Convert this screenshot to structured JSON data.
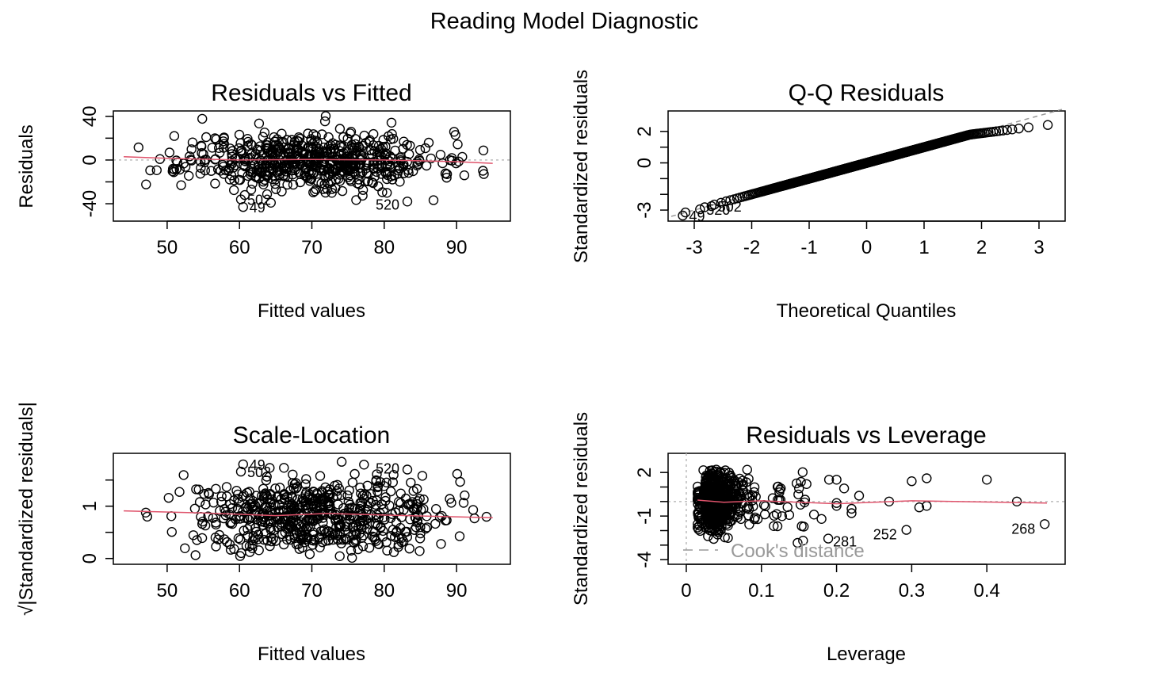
{
  "figure": {
    "title": "Reading Model Diagnostic"
  },
  "chart_data": [
    {
      "type": "scatter",
      "title": "Residuals vs Fitted",
      "xlabel": "Fitted values",
      "ylabel": "Residuals",
      "xlim": [
        43,
        97
      ],
      "ylim": [
        -53,
        42
      ],
      "xticks": [
        50,
        60,
        70,
        80,
        90
      ],
      "yticks": [
        -40,
        0,
        40
      ],
      "yticks_minor": [
        -20,
        20
      ],
      "reference_line": {
        "y": 0,
        "style": "dotted",
        "color": "#bbbbbb"
      },
      "smoother": [
        [
          44,
          3
        ],
        [
          50,
          1.5
        ],
        [
          60,
          0
        ],
        [
          70,
          0.5
        ],
        [
          80,
          0
        ],
        [
          90,
          -1.5
        ],
        [
          95,
          -3
        ]
      ],
      "labeled_points": [
        {
          "x": 60.5,
          "y": -43,
          "label": "49"
        },
        {
          "x": 60.2,
          "y": -36,
          "label": "502"
        },
        {
          "x": 83.2,
          "y": -38,
          "label": "520"
        }
      ],
      "cloud": {
        "n": 620,
        "x_range": [
          44,
          95
        ],
        "y_sd": 13,
        "seed": 11
      }
    },
    {
      "type": "scatter",
      "title": "Q-Q Residuals",
      "xlabel": "Theoretical Quantiles",
      "ylabel": "Standardized residuals",
      "xlim": [
        -3.4,
        3.4
      ],
      "ylim": [
        -3.5,
        3.1
      ],
      "xticks": [
        -3,
        -2,
        -1,
        0,
        1,
        2,
        3
      ],
      "yticks": [
        -3,
        0,
        2
      ],
      "yticks_minor": [
        -2,
        -1,
        1
      ],
      "reference_line": {
        "slope": 1,
        "intercept": 0,
        "style": "dashed",
        "color": "#999999"
      },
      "labeled_points": [
        {
          "x": -3.2,
          "y": -3.35,
          "label": "49"
        },
        {
          "x": -2.9,
          "y": -2.95,
          "label": "520"
        },
        {
          "x": -2.7,
          "y": -2.75,
          "label": "502"
        }
      ],
      "cloud": {
        "n": 620,
        "upper_tail_flatten": true
      }
    },
    {
      "type": "scatter",
      "title": "Scale-Location",
      "xlabel": "Fitted values",
      "ylabel": "√|Standardized residuals|",
      "xlim": [
        43,
        97
      ],
      "ylim": [
        -0.05,
        1.95
      ],
      "xticks": [
        50,
        60,
        70,
        80,
        90
      ],
      "yticks": [
        0.0,
        1.0
      ],
      "yticks_minor": [
        0.5,
        1.5
      ],
      "smoother": [
        [
          44,
          0.91
        ],
        [
          55,
          0.87
        ],
        [
          65,
          0.82
        ],
        [
          72,
          0.86
        ],
        [
          80,
          0.83
        ],
        [
          95,
          0.78
        ]
      ],
      "labeled_points": [
        {
          "x": 60.5,
          "y": 1.8,
          "label": "49"
        },
        {
          "x": 60.2,
          "y": 1.66,
          "label": "502"
        },
        {
          "x": 83.2,
          "y": 1.7,
          "label": "520"
        }
      ],
      "cloud": {
        "n": 620,
        "x_range": [
          44,
          95
        ],
        "seed": 29
      }
    },
    {
      "type": "scatter",
      "title": "Residuals vs Leverage",
      "xlabel": "Leverage",
      "ylabel": "Standardized residuals",
      "xlim": [
        -0.02,
        0.5
      ],
      "ylim": [
        -4.1,
        3.1
      ],
      "xticks": [
        0.0,
        0.1,
        0.2,
        0.3,
        0.4
      ],
      "yticks": [
        -4,
        -1,
        2
      ],
      "yticks_minor": [
        -3,
        -2,
        0,
        1
      ],
      "legend": {
        "label": "Cook's distance",
        "position": "bottom-left",
        "color": "#999999"
      },
      "reference_lines": [
        {
          "y": 0,
          "style": "dotted",
          "color": "#bbbbbb"
        },
        {
          "x": 0,
          "style": "dotted",
          "color": "#bbbbbb"
        }
      ],
      "smoother": [
        [
          0.015,
          0.1
        ],
        [
          0.05,
          -0.05
        ],
        [
          0.1,
          0.05
        ],
        [
          0.2,
          -0.15
        ],
        [
          0.3,
          0.05
        ],
        [
          0.48,
          -0.1
        ]
      ],
      "labeled_points": [
        {
          "x": 0.189,
          "y": -2.55,
          "label": "281"
        },
        {
          "x": 0.293,
          "y": -1.95,
          "label": "252"
        },
        {
          "x": 0.477,
          "y": -1.55,
          "label": "268"
        }
      ],
      "extra_points": [
        [
          0.15,
          0.9
        ],
        [
          0.16,
          1.2
        ],
        [
          0.19,
          1.5
        ],
        [
          0.2,
          1.5
        ],
        [
          0.21,
          0.9
        ],
        [
          0.22,
          -0.5
        ],
        [
          0.23,
          0.4
        ],
        [
          0.27,
          0.0
        ],
        [
          0.3,
          1.4
        ],
        [
          0.32,
          1.6
        ],
        [
          0.31,
          -0.4
        ],
        [
          0.32,
          -0.3
        ],
        [
          0.4,
          1.5
        ],
        [
          0.44,
          0.0
        ],
        [
          0.17,
          -0.9
        ],
        [
          0.2,
          -0.3
        ],
        [
          0.18,
          -1.2
        ],
        [
          0.22,
          -0.8
        ],
        [
          0.2,
          -0.1
        ]
      ],
      "cloud": {
        "n": 600,
        "x_range": [
          0.015,
          0.16
        ],
        "y_sd": 1.0,
        "seed": 47
      }
    }
  ]
}
